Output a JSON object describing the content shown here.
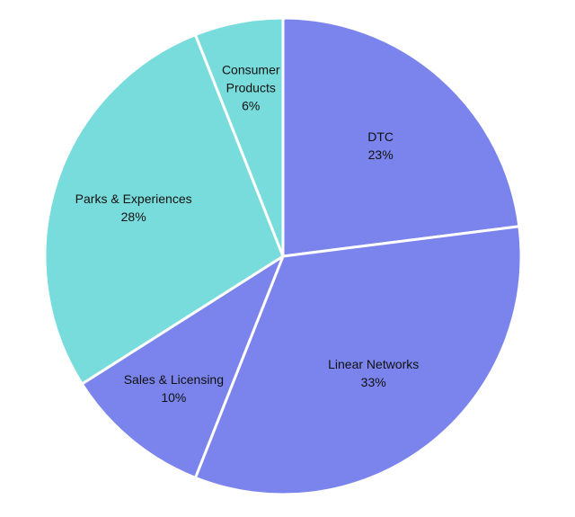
{
  "chart_data": {
    "type": "pie",
    "title": "",
    "start_angle_deg": 0,
    "direction": "clockwise",
    "slices": [
      {
        "label": "DTC",
        "value": 23,
        "pct": "23%",
        "color": "#7b84ec"
      },
      {
        "label": "Linear Networks",
        "value": 33,
        "pct": "33%",
        "color": "#7b84ec"
      },
      {
        "label": "Sales & Licensing",
        "value": 10,
        "pct": "10%",
        "color": "#7b84ec"
      },
      {
        "label": "Parks & Experiences",
        "value": 28,
        "pct": "28%",
        "color": "#79dcdc"
      },
      {
        "label": "Consumer Products",
        "label_lines": [
          "Consumer",
          "Products"
        ],
        "value": 6,
        "pct": "6%",
        "color": "#79dcdc"
      }
    ],
    "legend": "none"
  }
}
